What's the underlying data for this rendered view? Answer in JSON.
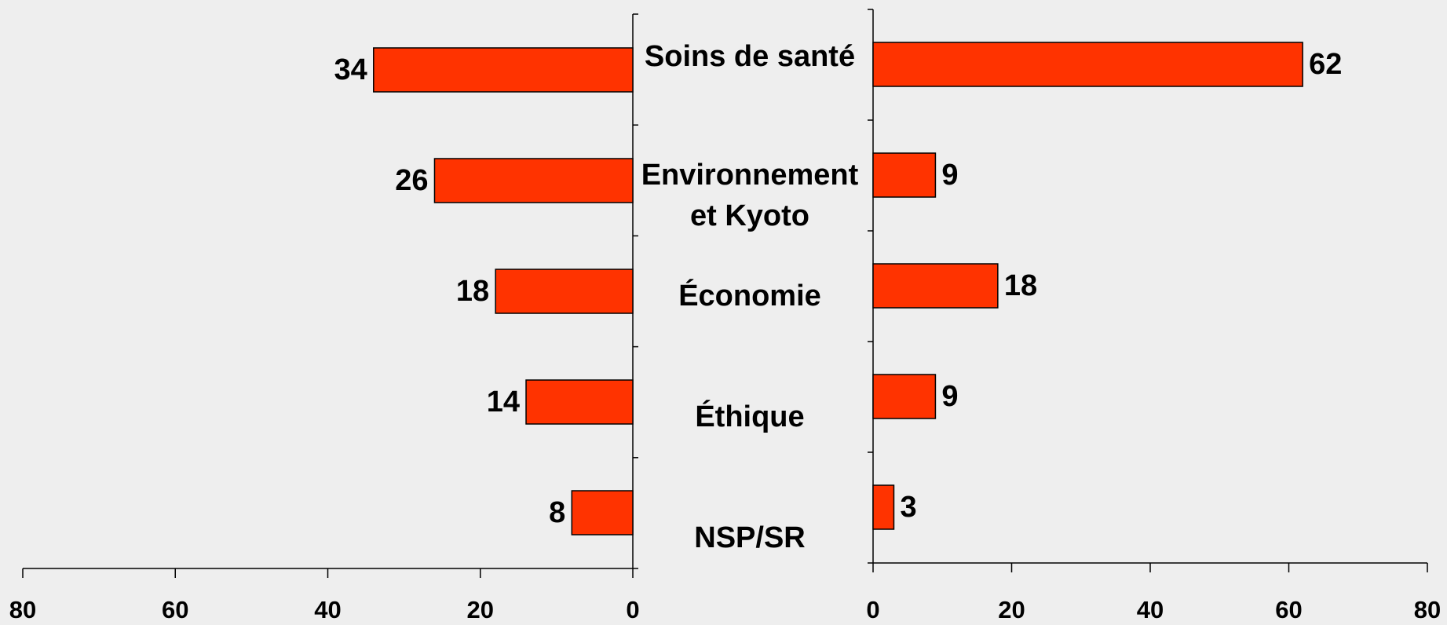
{
  "chart_data": [
    {
      "type": "bar",
      "orientation": "horizontal",
      "x_reversed": true,
      "categories": [
        "Soins de santé",
        "Environnement et Kyoto",
        "Économie",
        "Éthique",
        "NSP/SR"
      ],
      "values": [
        34,
        26,
        18,
        14,
        8
      ],
      "color": "#ff3300",
      "xlim": [
        0,
        80
      ],
      "xticks": [
        0,
        20,
        40,
        60,
        80
      ]
    },
    {
      "type": "bar",
      "orientation": "horizontal",
      "x_reversed": false,
      "values": [
        62,
        9,
        18,
        9,
        3
      ],
      "color": "#ff3300",
      "xlim": [
        0,
        80
      ],
      "xticks": [
        0,
        20,
        40,
        60,
        80
      ]
    }
  ]
}
